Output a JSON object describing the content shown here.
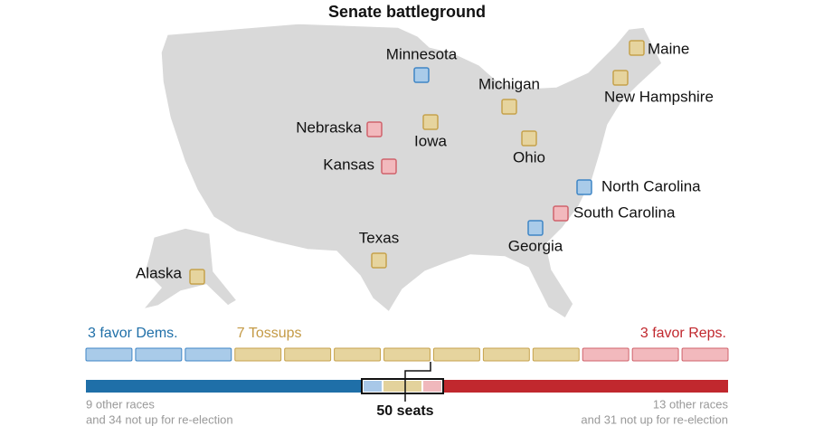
{
  "header": {
    "title": "Senate battleground"
  },
  "states": [
    {
      "label": "Minnesota",
      "rating": "dem"
    },
    {
      "label": "Maine",
      "rating": "tossup"
    },
    {
      "label": "New Hampshire",
      "rating": "tossup"
    },
    {
      "label": "Michigan",
      "rating": "tossup"
    },
    {
      "label": "Nebraska",
      "rating": "rep"
    },
    {
      "label": "Iowa",
      "rating": "tossup"
    },
    {
      "label": "Ohio",
      "rating": "tossup"
    },
    {
      "label": "Kansas",
      "rating": "rep"
    },
    {
      "label": "North Carolina",
      "rating": "dem"
    },
    {
      "label": "South Carolina",
      "rating": "rep"
    },
    {
      "label": "Georgia",
      "rating": "dem"
    },
    {
      "label": "Texas",
      "rating": "tossup"
    },
    {
      "label": "Alaska",
      "rating": "tossup"
    }
  ],
  "groups": [
    {
      "label": "3 favor Dems.",
      "rating": "dem",
      "count": 3
    },
    {
      "label": "7 Tossups",
      "rating": "tossup",
      "count": 7
    },
    {
      "label": "3 favor Reps.",
      "rating": "rep",
      "count": 3
    }
  ],
  "seat_bar": {
    "left_note": [
      "9 other races",
      "and 34 not up for re-election"
    ],
    "right_note": [
      "13 other races",
      "and 31 not up for re-election"
    ],
    "majority_label": "50 seats"
  }
}
